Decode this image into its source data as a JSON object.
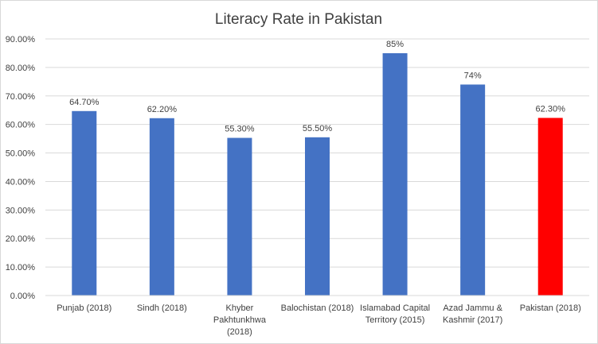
{
  "chart_data": {
    "type": "bar",
    "title": "Literacy Rate in Pakistan",
    "xlabel": "",
    "ylabel": "",
    "ylim": [
      0,
      90
    ],
    "y_ticks": [
      "0.00%",
      "10.00%",
      "20.00%",
      "30.00%",
      "40.00%",
      "50.00%",
      "60.00%",
      "70.00%",
      "80.00%",
      "90.00%"
    ],
    "grid": true,
    "legend": "none",
    "categories": [
      [
        "Punjab (2018)"
      ],
      [
        "Sindh (2018)"
      ],
      [
        "Khyber",
        "Pakhtunkhwa",
        "(2018)"
      ],
      [
        "Balochistan (2018)"
      ],
      [
        "Islamabad Capital",
        "Territory (2015)"
      ],
      [
        "Azad Jammu &",
        "Kashmir (2017)"
      ],
      [
        "Pakistan (2018)"
      ]
    ],
    "values": [
      64.7,
      62.2,
      55.3,
      55.5,
      85,
      74,
      62.3
    ],
    "data_labels": [
      "64.70%",
      "62.20%",
      "55.30%",
      "55.50%",
      "85%",
      "74%",
      "62.30%"
    ],
    "colors": [
      "#4472C4",
      "#4472C4",
      "#4472C4",
      "#4472C4",
      "#4472C4",
      "#4472C4",
      "#FF0000"
    ],
    "gridline_color": "#d9d9d9"
  }
}
